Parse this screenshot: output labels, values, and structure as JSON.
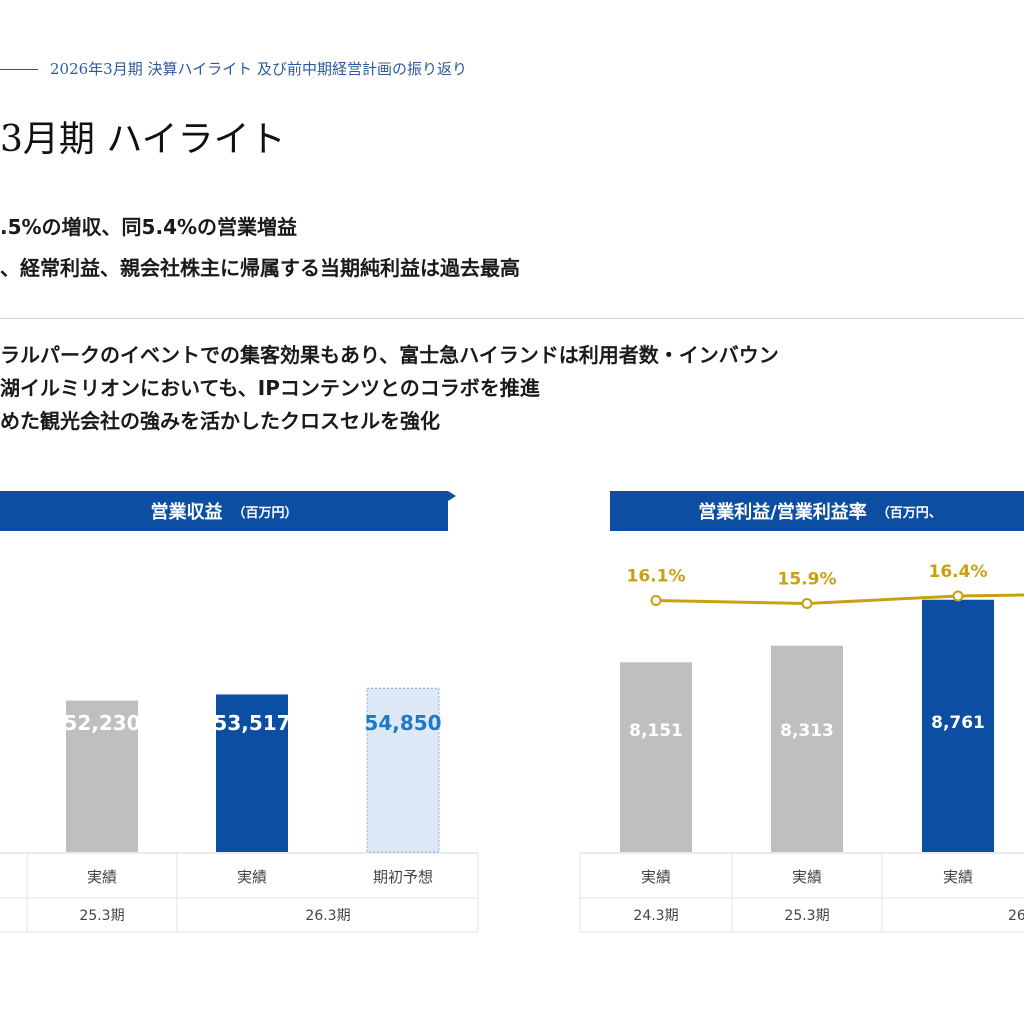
{
  "header": {
    "subtitle": "2026年3月期 決算ハイライト 及び前中期経営計画の振り返り",
    "title": "3月期 ハイライト"
  },
  "summary": [
    ".5%の増収、同5.4%の営業増益",
    "、経常利益、親会社株主に帰属する当期純利益は過去最高"
  ],
  "details": [
    "ラルパークのイベントでの集客効果もあり、富士急ハイランドは利用者数・インバウン",
    "湖イルミリオンにおいても、IPコンテンツとのコラボを推進",
    "めた観光会社の強みを活かしたクロスセルを強化"
  ],
  "colors": {
    "brand_blue": "#0b4ea2",
    "actual_gray": "#bfbfbf",
    "forecast_fill": "#dde9f7",
    "forecast_text": "#1f78c8",
    "rate_line": "#c9a012"
  },
  "chart_data": [
    {
      "type": "bar",
      "title": "営業収益",
      "unit": "（百万円）",
      "categories": [
        "実績",
        "実績",
        "期初予想"
      ],
      "groups": [
        "25.3期",
        "26.3期"
      ],
      "values": [
        52230,
        53517,
        54850
      ],
      "labels": [
        "52,230",
        "53,517",
        "54,850"
      ],
      "kinds": [
        "past",
        "current",
        "forecast"
      ]
    },
    {
      "type": "bar",
      "title": "営業利益/営業利益率",
      "unit": "（百万円、",
      "categories": [
        "実績",
        "実績",
        "実績"
      ],
      "groups": [
        "24.3期",
        "25.3期",
        "26"
      ],
      "values": [
        8151,
        8313,
        8761
      ],
      "labels": [
        "8,151",
        "8,313",
        "8,761"
      ],
      "kinds": [
        "past",
        "past",
        "current"
      ],
      "rate_series": {
        "values": [
          16.1,
          15.9,
          16.4
        ],
        "labels": [
          "16.1%",
          "15.9%",
          "16.4%"
        ]
      }
    }
  ]
}
